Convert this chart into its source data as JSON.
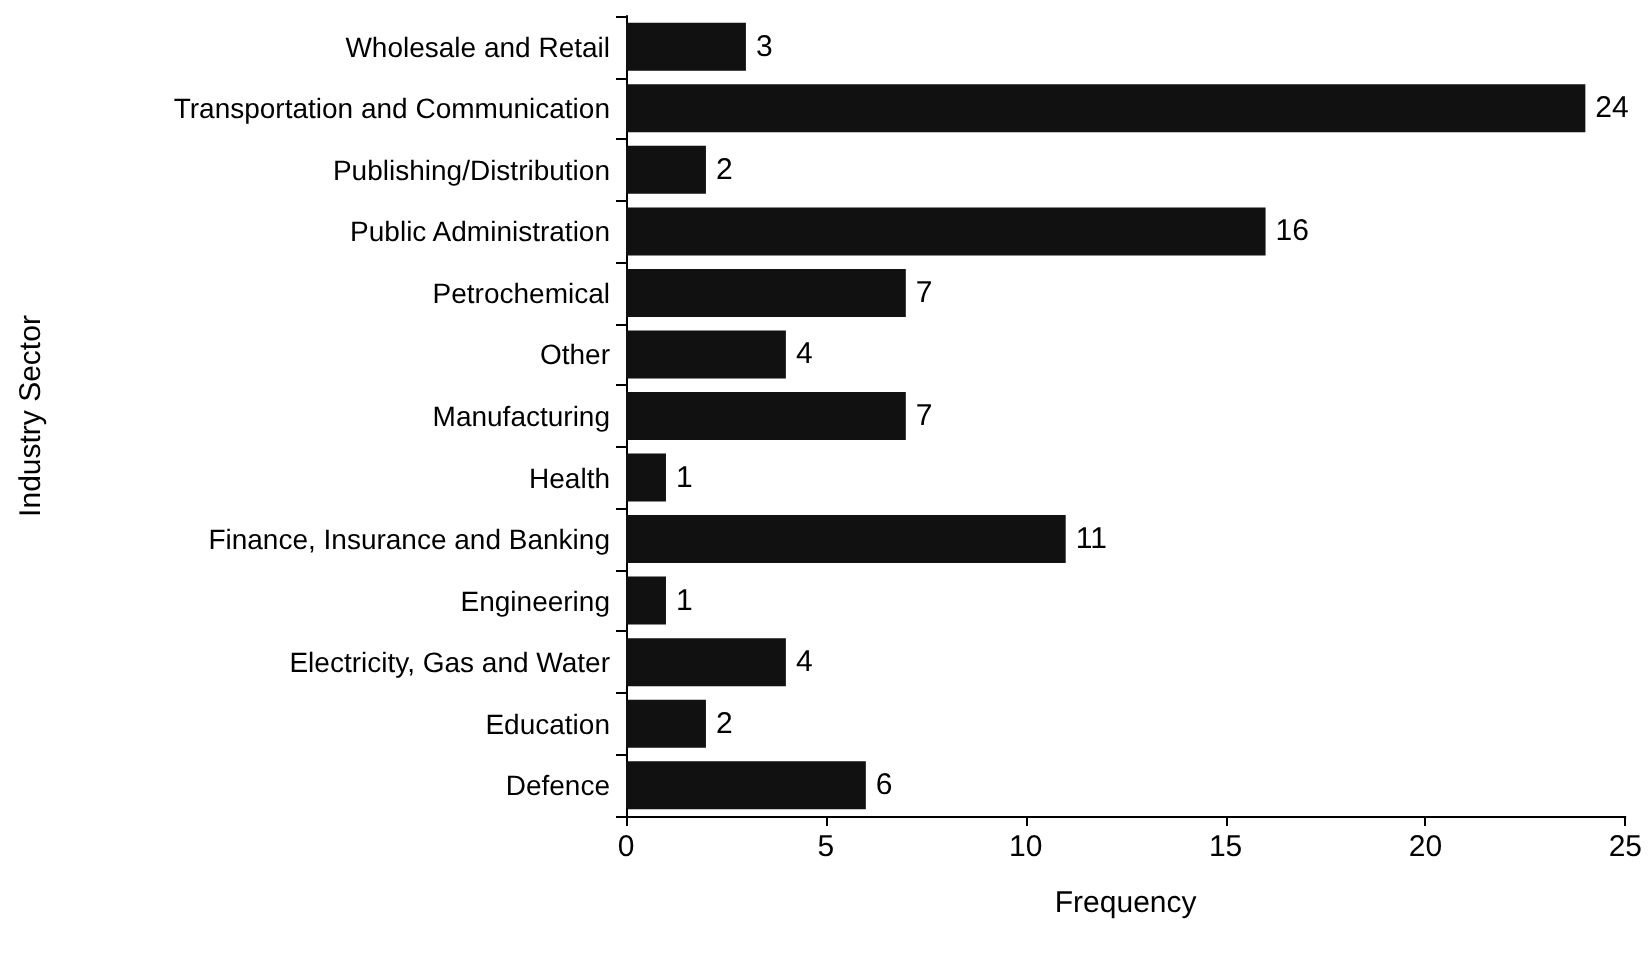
{
  "chart_data": {
    "type": "bar",
    "orientation": "horizontal",
    "categories": [
      "Wholesale and Retail",
      "Transportation and Communication",
      "Publishing/Distribution",
      "Public Administration",
      "Petrochemical",
      "Other",
      "Manufacturing",
      "Health",
      "Finance, Insurance and Banking",
      "Engineering",
      "Electricity, Gas and Water",
      "Education",
      "Defence"
    ],
    "values": [
      3,
      24,
      2,
      16,
      7,
      4,
      7,
      1,
      11,
      1,
      4,
      2,
      6
    ],
    "color": "#111111",
    "xlim": [
      0,
      25
    ],
    "xticks": [
      0,
      5,
      10,
      15,
      20,
      25
    ],
    "xlabel": "Frequency",
    "ylabel": "Industry Sector",
    "data_labels": true
  }
}
